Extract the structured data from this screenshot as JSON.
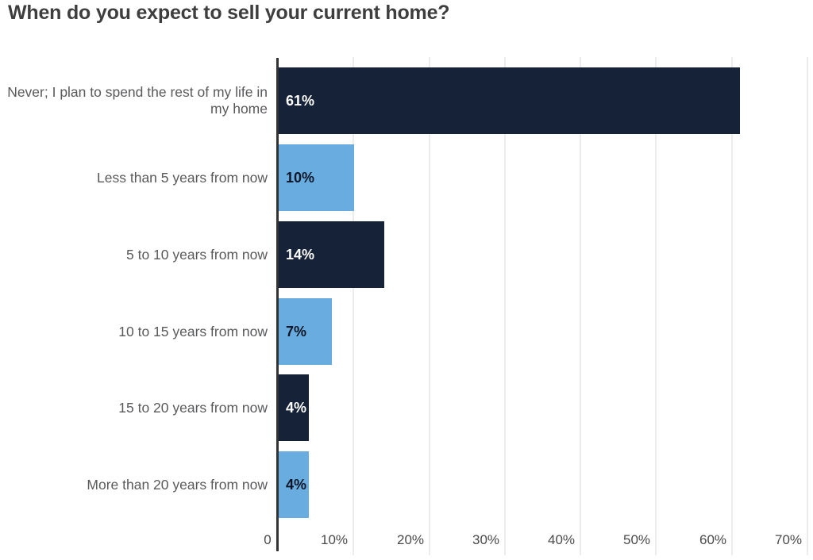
{
  "chart_data": {
    "type": "bar",
    "orientation": "horizontal",
    "title": "When do you expect to sell your current home?",
    "categories": [
      "Never; I plan to spend the rest of my life in my home",
      "Less than 5 years from now",
      "5 to 10 years from now",
      "10 to 15 years from now",
      "15 to 20 years from now",
      "More than 20 years from now"
    ],
    "values": [
      61,
      10,
      14,
      7,
      4,
      4
    ],
    "value_labels": [
      "61%",
      "10%",
      "14%",
      "7%",
      "4%",
      "4%"
    ],
    "bar_tones": [
      "dark",
      "light",
      "dark",
      "light",
      "dark",
      "light"
    ],
    "x_ticks": [
      "0",
      "10%",
      "20%",
      "30%",
      "40%",
      "50%",
      "60%",
      "70%"
    ],
    "xlim": [
      0,
      70
    ],
    "xlabel": "",
    "ylabel": "",
    "grid": "vertical-gridlines",
    "legend": "none",
    "colors": {
      "bar_dark": "#152238",
      "bar_light": "#69ade0",
      "value_on_dark": "#ffffff",
      "value_on_light": "#0c1526",
      "title_text": "#3e3e3e",
      "category_text": "#58595b",
      "tick_text": "#4a4a4a",
      "axis_line": "#333333",
      "gridline": "#ececec",
      "background": "#ffffff"
    }
  }
}
